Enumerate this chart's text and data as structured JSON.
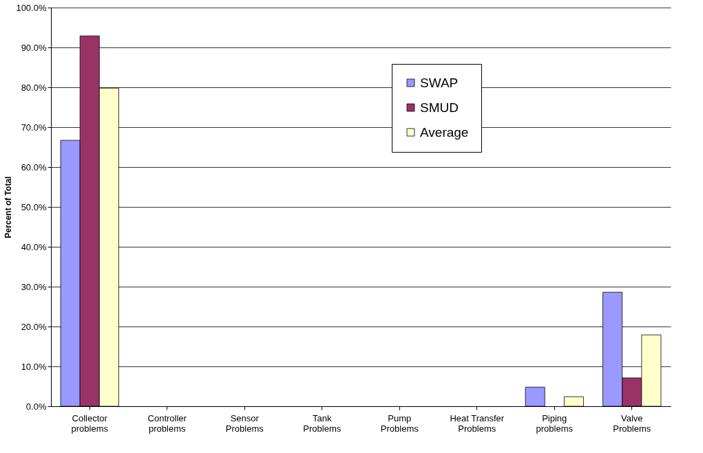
{
  "chart_data": {
    "type": "bar",
    "ylabel": "Percent of Total",
    "categories": [
      "Collector problems",
      "Controller problems",
      "Sensor Problems",
      "Tank Problems",
      "Pump Problems",
      "Heat Transfer Problems",
      "Piping problems",
      "Valve Problems"
    ],
    "series": [
      {
        "name": "SWAP",
        "color": "#9999ff",
        "values": [
          66.7,
          0,
          0,
          0,
          0,
          0,
          4.8,
          28.6
        ]
      },
      {
        "name": "SMUD",
        "color": "#993366",
        "values": [
          92.9,
          0,
          0,
          0,
          0,
          0,
          0,
          7.1
        ]
      },
      {
        "name": "Average",
        "color": "#ffffcc",
        "values": [
          79.8,
          0,
          0,
          0,
          0,
          0,
          2.4,
          17.9
        ]
      }
    ],
    "ylim": [
      0,
      100
    ],
    "yticks": [
      {
        "value": 0,
        "label": "0.0%"
      },
      {
        "value": 10,
        "label": "10.0%"
      },
      {
        "value": 20,
        "label": "20.0%"
      },
      {
        "value": 30,
        "label": "30.0%"
      },
      {
        "value": 40,
        "label": "40.0%"
      },
      {
        "value": 50,
        "label": "50.0%"
      },
      {
        "value": 60,
        "label": "60.0%"
      },
      {
        "value": 70,
        "label": "70.0%"
      },
      {
        "value": 80,
        "label": "80.0%"
      },
      {
        "value": 90,
        "label": "90.0%"
      },
      {
        "value": 100,
        "label": "100.0%"
      }
    ],
    "grid": "y",
    "legend": "top right"
  }
}
